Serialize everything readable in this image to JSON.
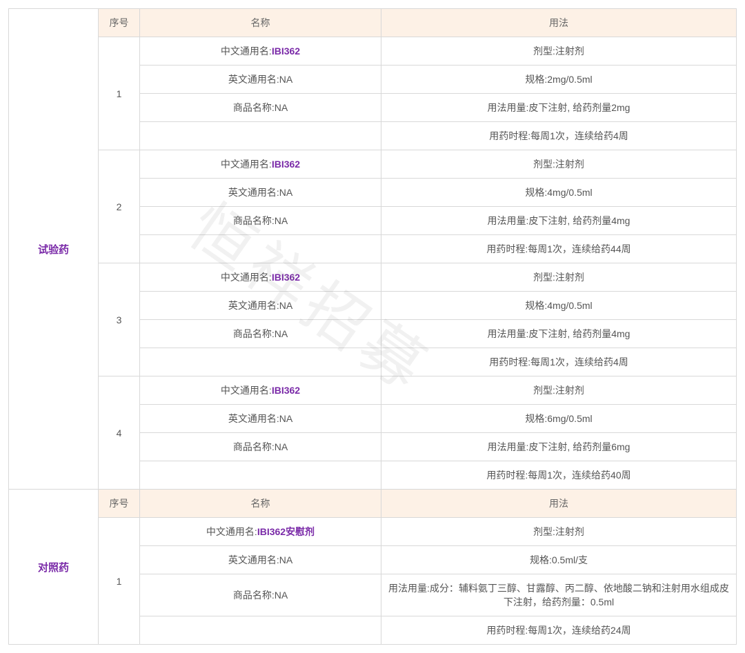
{
  "watermark": "恒祥招募",
  "headers": {
    "seq": "序号",
    "name": "名称",
    "usage": "用法"
  },
  "sections": [
    {
      "label": "试验药",
      "drugs": [
        {
          "seq": "1",
          "name_rows": [
            {
              "label": "中文通用名:",
              "value": "IBI362",
              "highlight": true
            },
            {
              "label": "英文通用名:NA",
              "value": "",
              "highlight": false
            },
            {
              "label": "商品名称:NA",
              "value": "",
              "highlight": false
            },
            {
              "label": "",
              "value": "",
              "highlight": false
            }
          ],
          "usage_rows": [
            "剂型:注射剂",
            "规格:2mg/0.5ml",
            "用法用量:皮下注射, 给药剂量2mg",
            "用药时程:每周1次，连续给药4周"
          ]
        },
        {
          "seq": "2",
          "name_rows": [
            {
              "label": "中文通用名:",
              "value": "IBI362",
              "highlight": true
            },
            {
              "label": "英文通用名:NA",
              "value": "",
              "highlight": false
            },
            {
              "label": "商品名称:NA",
              "value": "",
              "highlight": false
            },
            {
              "label": "",
              "value": "",
              "highlight": false
            }
          ],
          "usage_rows": [
            "剂型:注射剂",
            "规格:4mg/0.5ml",
            "用法用量:皮下注射, 给药剂量4mg",
            "用药时程:每周1次，连续给药44周"
          ]
        },
        {
          "seq": "3",
          "name_rows": [
            {
              "label": "中文通用名:",
              "value": "IBI362",
              "highlight": true
            },
            {
              "label": "英文通用名:NA",
              "value": "",
              "highlight": false
            },
            {
              "label": "商品名称:NA",
              "value": "",
              "highlight": false
            },
            {
              "label": "",
              "value": "",
              "highlight": false
            }
          ],
          "usage_rows": [
            "剂型:注射剂",
            "规格:4mg/0.5ml",
            "用法用量:皮下注射, 给药剂量4mg",
            "用药时程:每周1次，连续给药4周"
          ]
        },
        {
          "seq": "4",
          "name_rows": [
            {
              "label": "中文通用名:",
              "value": "IBI362",
              "highlight": true
            },
            {
              "label": "英文通用名:NA",
              "value": "",
              "highlight": false
            },
            {
              "label": "商品名称:NA",
              "value": "",
              "highlight": false
            },
            {
              "label": "",
              "value": "",
              "highlight": false
            }
          ],
          "usage_rows": [
            "剂型:注射剂",
            "规格:6mg/0.5ml",
            "用法用量:皮下注射, 给药剂量6mg",
            "用药时程:每周1次，连续给药40周"
          ]
        }
      ]
    },
    {
      "label": "对照药",
      "drugs": [
        {
          "seq": "1",
          "name_rows": [
            {
              "label": "中文通用名:",
              "value": "IBI362安慰剂",
              "highlight": true
            },
            {
              "label": "英文通用名:NA",
              "value": "",
              "highlight": false
            },
            {
              "label": "商品名称:NA",
              "value": "",
              "highlight": false
            },
            {
              "label": "",
              "value": "",
              "highlight": false
            }
          ],
          "usage_rows": [
            "剂型:注射剂",
            "规格:0.5ml/支",
            "用法用量:成分：辅料氨丁三醇、甘露醇、丙二醇、依地酸二钠和注射用水组成皮下注射，给药剂量：0.5ml",
            "用药时程:每周1次，连续给药24周"
          ]
        }
      ]
    }
  ]
}
